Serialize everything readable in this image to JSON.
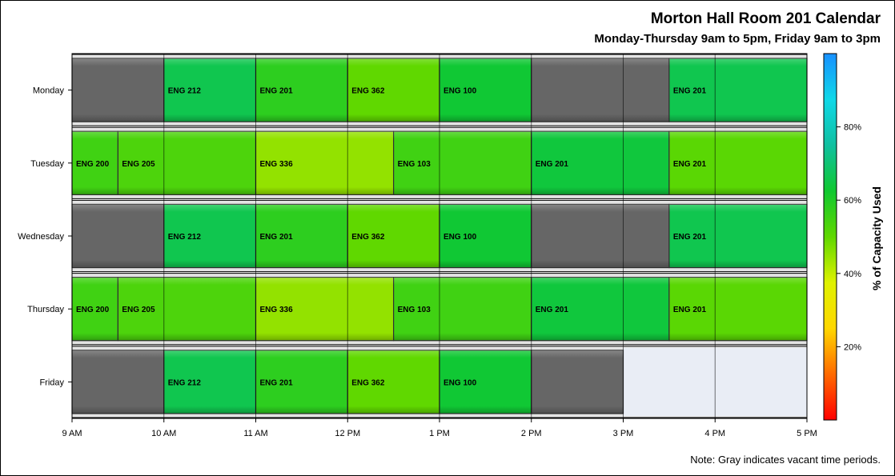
{
  "title": "Morton Hall Room 201 Calendar",
  "subtitle": "Monday-Thursday 9am to 5pm, Friday 9am to 3pm",
  "note": "Note: Gray indicates vacant time periods.",
  "colorbar_label": "% of Capacity Used",
  "colors": {
    "vacant": "#666666",
    "outside_hours": "#e9edf5",
    "row_band": "#e3e3e3",
    "gradient_stops": [
      "#ff0000",
      "#ff6a00",
      "#ffd700",
      "#dff200",
      "#60d800",
      "#10c830",
      "#10c0a0",
      "#10d8e8",
      "#1890ff"
    ]
  },
  "chart_data": {
    "type": "gantt",
    "title": "Morton Hall Room 201 Calendar",
    "subtitle": "Monday-Thursday 9am to 5pm, Friday 9am to 3pm",
    "xlim": [
      9,
      17
    ],
    "x_ticks": [
      {
        "v": 9,
        "label": "9 AM"
      },
      {
        "v": 10,
        "label": "10 AM"
      },
      {
        "v": 11,
        "label": "11 AM"
      },
      {
        "v": 12,
        "label": "12 PM"
      },
      {
        "v": 13,
        "label": "1 PM"
      },
      {
        "v": 14,
        "label": "2 PM"
      },
      {
        "v": 15,
        "label": "3 PM"
      },
      {
        "v": 16,
        "label": "4 PM"
      },
      {
        "v": 17,
        "label": "5 PM"
      }
    ],
    "days": [
      {
        "day": "Monday",
        "blocks": [
          {
            "start": 9,
            "end": 10,
            "label": "",
            "vacant": true
          },
          {
            "start": 10,
            "end": 11,
            "label": "ENG 212",
            "capacity": 66
          },
          {
            "start": 11,
            "end": 12,
            "label": "ENG 201",
            "capacity": 58
          },
          {
            "start": 12,
            "end": 13,
            "label": "ENG 362",
            "capacity": 50
          },
          {
            "start": 13,
            "end": 14,
            "label": "ENG 100",
            "capacity": 63
          },
          {
            "start": 14,
            "end": 15.5,
            "label": "",
            "vacant": true
          },
          {
            "start": 15.5,
            "end": 17,
            "label": "ENG 201",
            "capacity": 66
          }
        ]
      },
      {
        "day": "Tuesday",
        "blocks": [
          {
            "start": 9,
            "end": 9.5,
            "label": "ENG 200",
            "capacity": 55
          },
          {
            "start": 9.5,
            "end": 11,
            "label": "ENG 205",
            "capacity": 53
          },
          {
            "start": 11,
            "end": 12.5,
            "label": "ENG 336",
            "capacity": 45
          },
          {
            "start": 12.5,
            "end": 14,
            "label": "ENG 103",
            "capacity": 55
          },
          {
            "start": 14,
            "end": 15.5,
            "label": "ENG 201",
            "capacity": 64
          },
          {
            "start": 15.5,
            "end": 17,
            "label": "ENG 201",
            "capacity": 51
          }
        ]
      },
      {
        "day": "Wednesday",
        "blocks": [
          {
            "start": 9,
            "end": 10,
            "label": "",
            "vacant": true
          },
          {
            "start": 10,
            "end": 11,
            "label": "ENG 212",
            "capacity": 66
          },
          {
            "start": 11,
            "end": 12,
            "label": "ENG 201",
            "capacity": 58
          },
          {
            "start": 12,
            "end": 13,
            "label": "ENG 362",
            "capacity": 50
          },
          {
            "start": 13,
            "end": 14,
            "label": "ENG 100",
            "capacity": 63
          },
          {
            "start": 14,
            "end": 15.5,
            "label": "",
            "vacant": true
          },
          {
            "start": 15.5,
            "end": 17,
            "label": "ENG 201",
            "capacity": 66
          }
        ]
      },
      {
        "day": "Thursday",
        "blocks": [
          {
            "start": 9,
            "end": 9.5,
            "label": "ENG 200",
            "capacity": 55
          },
          {
            "start": 9.5,
            "end": 11,
            "label": "ENG 205",
            "capacity": 53
          },
          {
            "start": 11,
            "end": 12.5,
            "label": "ENG 336",
            "capacity": 45
          },
          {
            "start": 12.5,
            "end": 14,
            "label": "ENG 103",
            "capacity": 55
          },
          {
            "start": 14,
            "end": 15.5,
            "label": "ENG 201",
            "capacity": 64
          },
          {
            "start": 15.5,
            "end": 17,
            "label": "ENG 201",
            "capacity": 51
          }
        ]
      },
      {
        "day": "Friday",
        "blocks": [
          {
            "start": 9,
            "end": 10,
            "label": "",
            "vacant": true
          },
          {
            "start": 10,
            "end": 11,
            "label": "ENG 212",
            "capacity": 66
          },
          {
            "start": 11,
            "end": 12,
            "label": "ENG 201",
            "capacity": 58
          },
          {
            "start": 12,
            "end": 13,
            "label": "ENG 362",
            "capacity": 50
          },
          {
            "start": 13,
            "end": 14,
            "label": "ENG 100",
            "capacity": 63
          },
          {
            "start": 14,
            "end": 15,
            "label": "",
            "vacant": true
          }
        ]
      }
    ],
    "colorbar": {
      "title": "% of Capacity Used",
      "range": [
        0,
        100
      ],
      "ticks": [
        {
          "v": 20,
          "label": "20%"
        },
        {
          "v": 40,
          "label": "40%"
        },
        {
          "v": 60,
          "label": "60%"
        },
        {
          "v": 80,
          "label": "80%"
        }
      ]
    }
  }
}
